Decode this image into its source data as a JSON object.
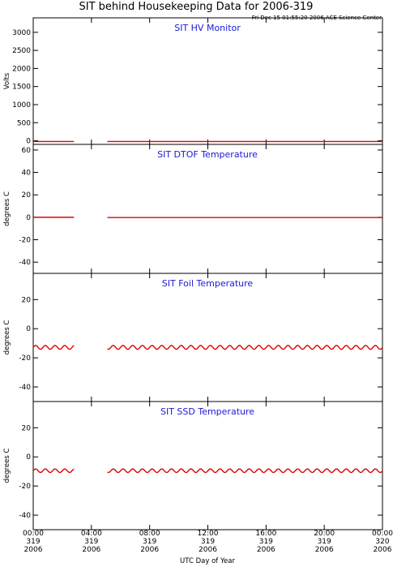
{
  "title": "SIT behind Housekeeping Data for 2006-319",
  "timestamp": "Fri Dec 15 01:55:20 2006 ACE Science Center",
  "xlabel": "UTC Day of Year",
  "x_ticks": [
    {
      "time": "00:00",
      "doy": "319",
      "year": "2006",
      "hour": 0
    },
    {
      "time": "04:00",
      "doy": "319",
      "year": "2006",
      "hour": 4
    },
    {
      "time": "08:00",
      "doy": "319",
      "year": "2006",
      "hour": 8
    },
    {
      "time": "12:00",
      "doy": "319",
      "year": "2006",
      "hour": 12
    },
    {
      "time": "16:00",
      "doy": "319",
      "year": "2006",
      "hour": 16
    },
    {
      "time": "20:00",
      "doy": "319",
      "year": "2006",
      "hour": 20
    },
    {
      "time": "00:00",
      "doy": "320",
      "year": "2006",
      "hour": 24
    }
  ],
  "colors": {
    "trace": "#e00000",
    "panel_title": "#1a1ad6",
    "axes": "#000000"
  },
  "chart_data": [
    {
      "type": "line",
      "title": "SIT HV Monitor",
      "ylabel": "Volts",
      "xlim": [
        0,
        24
      ],
      "ylim": [
        -100,
        3400
      ],
      "yticks": [
        0,
        500,
        1000,
        1500,
        2000,
        2500,
        3000
      ],
      "series": [
        {
          "segments": [
            {
              "x": [
                0.0,
                2.8
              ],
              "y": [
                -20,
                -20
              ]
            },
            {
              "x": [
                5.1,
                24.0
              ],
              "y": [
                -20,
                -20
              ]
            }
          ]
        }
      ]
    },
    {
      "type": "line",
      "title": "SIT DTOF Temperature",
      "ylabel": "degrees C",
      "xlim": [
        0,
        24
      ],
      "ylim": [
        -50,
        65
      ],
      "yticks": [
        -40,
        -20,
        0,
        20,
        40,
        60
      ],
      "series": [
        {
          "segments": [
            {
              "x": [
                0.0,
                2.8
              ],
              "y": [
                0,
                0
              ]
            },
            {
              "x": [
                5.1,
                24.0
              ],
              "y": [
                -0.2,
                -0.2
              ]
            }
          ]
        }
      ]
    },
    {
      "type": "line",
      "title": "SIT Foil Temperature",
      "ylabel": "degrees C",
      "xlim": [
        0,
        24
      ],
      "ylim": [
        -50,
        38
      ],
      "yticks": [
        -40,
        -20,
        0,
        20
      ],
      "series": [
        {
          "oscillation": {
            "mean": -12.8,
            "amplitude": 1.3,
            "period_hours": 0.667
          },
          "segments": [
            {
              "x_start": 0.0,
              "x_end": 2.8
            },
            {
              "x_start": 5.1,
              "x_end": 24.0
            }
          ]
        }
      ]
    },
    {
      "type": "line",
      "title": "SIT SSD Temperature",
      "ylabel": "degrees C",
      "xlim": [
        0,
        24
      ],
      "ylim": [
        -50,
        38
      ],
      "yticks": [
        -40,
        -20,
        0,
        20
      ],
      "series": [
        {
          "oscillation": {
            "mean": -9.5,
            "amplitude": 1.2,
            "period_hours": 0.667
          },
          "segments": [
            {
              "x_start": 0.0,
              "x_end": 2.8
            },
            {
              "x_start": 5.1,
              "x_end": 24.0
            }
          ]
        }
      ]
    }
  ]
}
